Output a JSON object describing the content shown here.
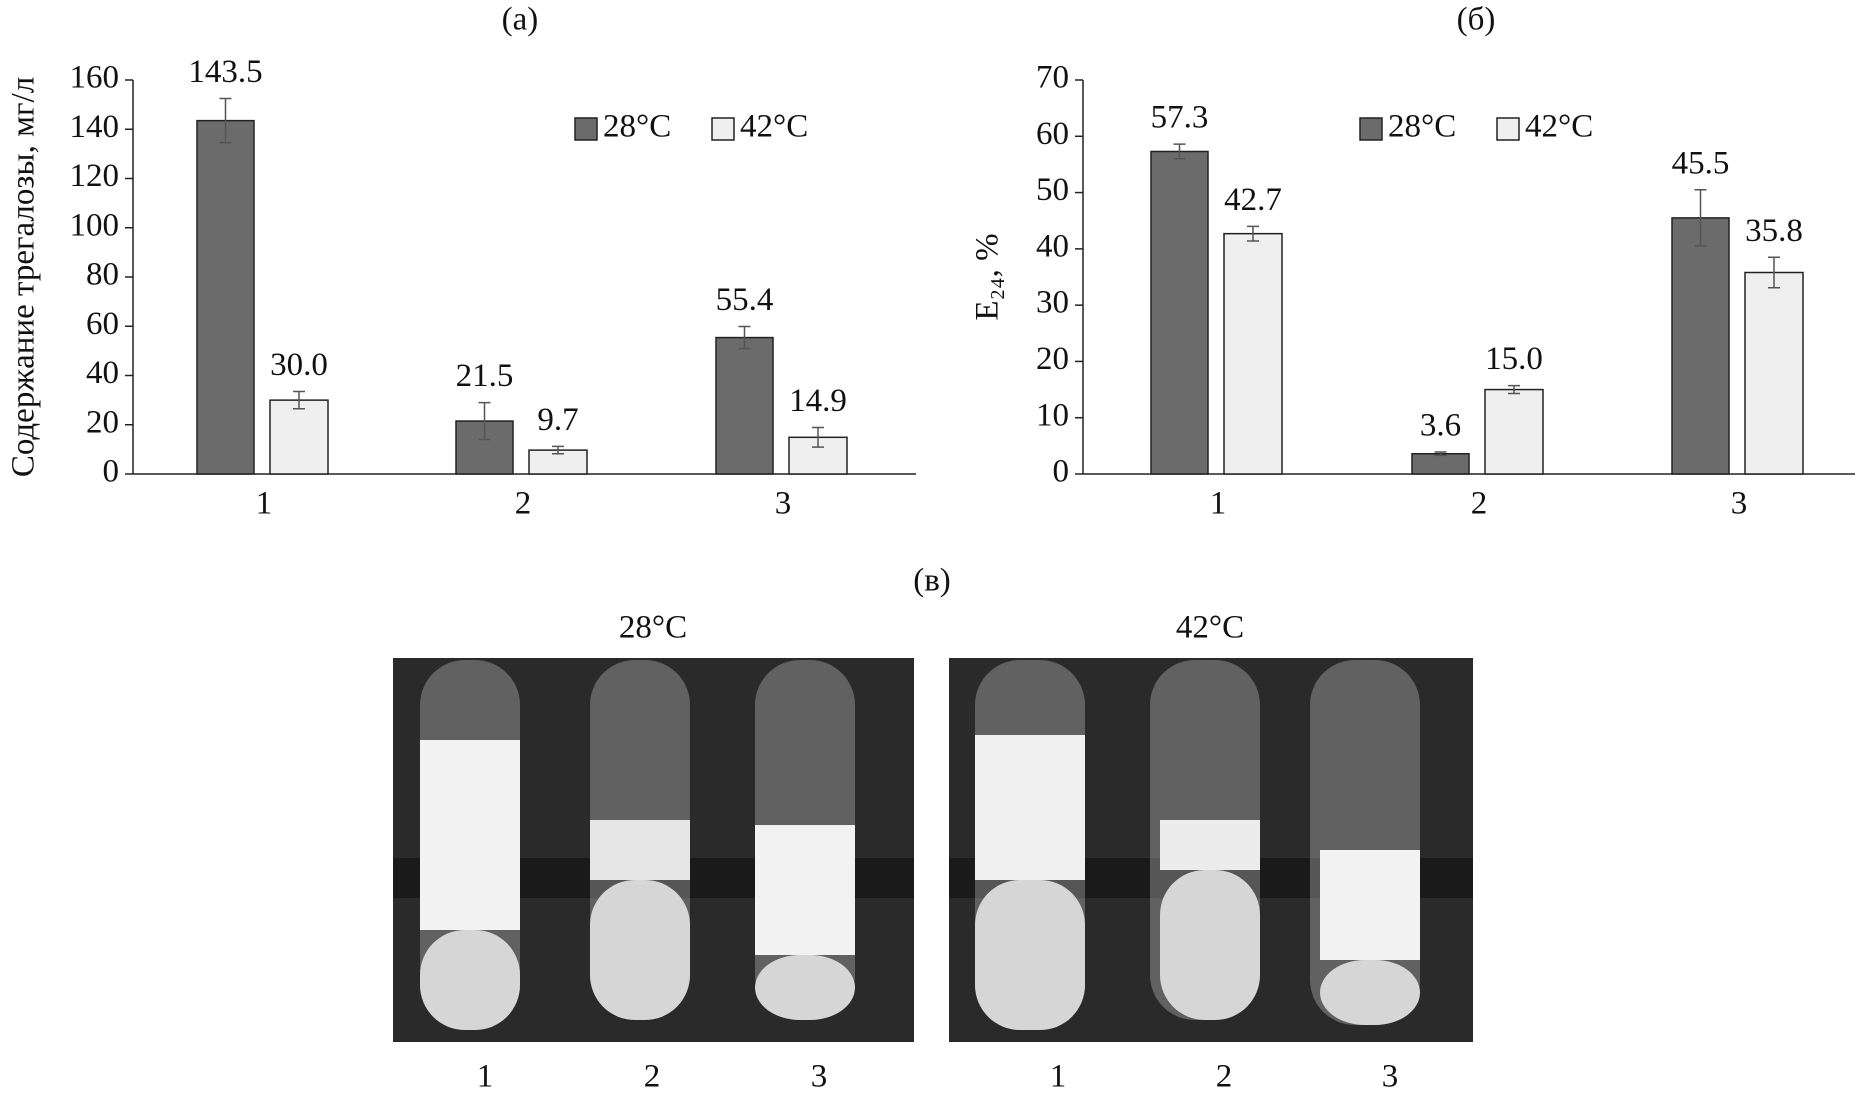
{
  "chart_data": [
    {
      "type": "bar",
      "title": "(а)",
      "y_label": "Содержание трегалозы, мг/л",
      "categories": [
        "1",
        "2",
        "3"
      ],
      "series": [
        {
          "name": "28°C",
          "color": "#6b6b6b",
          "values": [
            143.5,
            21.5,
            55.4
          ],
          "value_labels": [
            "143.5",
            "21.5",
            "55.4"
          ],
          "errors": [
            9,
            7.5,
            4.5
          ]
        },
        {
          "name": "42°C",
          "color": "#efefef",
          "values": [
            30.0,
            9.7,
            14.9
          ],
          "value_labels": [
            "30.0",
            "9.7",
            "14.9"
          ],
          "errors": [
            3.5,
            1.5,
            4
          ]
        }
      ],
      "ylim": [
        0,
        160
      ],
      "yticks": [
        0,
        20,
        40,
        60,
        80,
        100,
        120,
        140,
        160
      ],
      "legend": "upper right"
    },
    {
      "type": "bar",
      "title": "(б)",
      "y_label": "E₂₄, %",
      "categories": [
        "1",
        "2",
        "3"
      ],
      "series": [
        {
          "name": "28°C",
          "color": "#6b6b6b",
          "values": [
            57.3,
            3.6,
            45.5
          ],
          "value_labels": [
            "57.3",
            "3.6",
            "45.5"
          ],
          "errors": [
            1.3,
            0.3,
            5
          ]
        },
        {
          "name": "42°C",
          "color": "#efefef",
          "values": [
            42.7,
            15.0,
            35.8
          ],
          "value_labels": [
            "42.7",
            "15.0",
            "35.8"
          ],
          "errors": [
            1.3,
            0.7,
            2.7
          ]
        }
      ],
      "ylim": [
        0,
        70
      ],
      "yticks": [
        0,
        10,
        20,
        30,
        40,
        50,
        60,
        70
      ],
      "legend": "upper right"
    }
  ],
  "photo_panel": {
    "label": "(в)",
    "panels": [
      {
        "title": "28°C",
        "tubes": [
          "1",
          "2",
          "3"
        ]
      },
      {
        "title": "42°C",
        "tubes": [
          "1",
          "2",
          "3"
        ]
      }
    ]
  }
}
